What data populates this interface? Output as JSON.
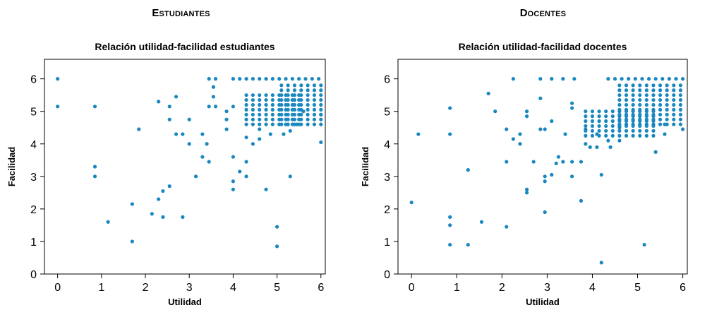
{
  "sections": [
    {
      "title_initial": "E",
      "title_rest": "studiantes"
    },
    {
      "title_initial": "D",
      "title_rest": "ocentes"
    }
  ],
  "chart_data": [
    {
      "type": "scatter",
      "title": "Relación utilidad-facilidad estudiantes",
      "xlabel": "Utilidad",
      "ylabel": "Facilidad",
      "xlim": [
        -0.3,
        6.1
      ],
      "ylim": [
        0,
        6.6
      ],
      "xticks": [
        0,
        1,
        2,
        3,
        4,
        5,
        6
      ],
      "yticks": [
        0,
        1,
        2,
        3,
        4,
        5,
        6
      ],
      "marker_color": "#1a87bf",
      "points": [
        [
          0,
          6
        ],
        [
          0,
          5.15
        ],
        [
          0.85,
          5.15
        ],
        [
          0.85,
          3.3
        ],
        [
          0.85,
          3.0
        ],
        [
          1.15,
          1.6
        ],
        [
          1.7,
          2.15
        ],
        [
          1.7,
          1.0
        ],
        [
          1.85,
          4.45
        ],
        [
          2.15,
          1.85
        ],
        [
          2.3,
          5.3
        ],
        [
          2.3,
          2.3
        ],
        [
          2.4,
          2.55
        ],
        [
          2.4,
          1.75
        ],
        [
          2.55,
          5.15
        ],
        [
          2.55,
          4.75
        ],
        [
          2.55,
          2.7
        ],
        [
          2.7,
          5.45
        ],
        [
          2.7,
          4.3
        ],
        [
          2.85,
          4.3
        ],
        [
          2.85,
          1.75
        ],
        [
          3.0,
          4.75
        ],
        [
          3.0,
          4.0
        ],
        [
          3.15,
          3.0
        ],
        [
          3.3,
          4.3
        ],
        [
          3.3,
          3.6
        ],
        [
          3.45,
          3.45
        ],
        [
          3.4,
          4.0
        ],
        [
          3.45,
          6
        ],
        [
          3.45,
          5.15
        ],
        [
          3.55,
          5.75
        ],
        [
          3.55,
          5.45
        ],
        [
          3.6,
          6
        ],
        [
          3.6,
          5.15
        ],
        [
          3.85,
          4.75
        ],
        [
          3.85,
          4.45
        ],
        [
          3.85,
          5.0
        ],
        [
          4.0,
          5.15
        ],
        [
          4.0,
          3.6
        ],
        [
          4.0,
          2.85
        ],
        [
          4.0,
          2.6
        ],
        [
          4.15,
          3.15
        ],
        [
          4.3,
          3.45
        ],
        [
          4.3,
          3.0
        ],
        [
          4.3,
          4.2
        ],
        [
          4.45,
          4.0
        ],
        [
          4.6,
          4.15
        ],
        [
          4.6,
          4.45
        ],
        [
          4.75,
          2.6
        ],
        [
          4.85,
          4.3
        ],
        [
          5.0,
          1.45
        ],
        [
          5.0,
          0.85
        ],
        [
          5.15,
          4.3
        ],
        [
          5.3,
          3.0
        ],
        [
          5.3,
          4.4
        ],
        [
          5.45,
          4.6
        ],
        [
          5.6,
          5.0
        ],
        [
          6.0,
          4.05
        ],
        [
          6.0,
          4.9
        ]
      ],
      "dense_clusters": [
        {
          "x_min": 4.0,
          "x_max": 6.0,
          "x_step": 0.15,
          "y": 6.0
        },
        {
          "x_min": 4.3,
          "x_max": 5.5,
          "x_step": 0.15,
          "y_min": 4.6,
          "y_max": 5.6,
          "y_step": 0.15
        },
        {
          "x_min": 5.1,
          "x_max": 6.0,
          "x_step": 0.15,
          "y_min": 4.6,
          "y_max": 5.9,
          "y_step": 0.15
        }
      ]
    },
    {
      "type": "scatter",
      "title": "Relación utilidad-facilidad docentes",
      "xlabel": "Utilidad",
      "ylabel": "Facilidad",
      "xlim": [
        -0.3,
        6.1
      ],
      "ylim": [
        0,
        6.6
      ],
      "xticks": [
        0,
        1,
        2,
        3,
        4,
        5,
        6
      ],
      "yticks": [
        0,
        1,
        2,
        3,
        4,
        5,
        6
      ],
      "marker_color": "#1a87bf",
      "points": [
        [
          0,
          2.2
        ],
        [
          0.15,
          4.3
        ],
        [
          0.85,
          5.1
        ],
        [
          0.85,
          4.3
        ],
        [
          0.85,
          1.75
        ],
        [
          0.85,
          1.5
        ],
        [
          0.85,
          0.9
        ],
        [
          1.25,
          3.2
        ],
        [
          1.25,
          0.9
        ],
        [
          1.55,
          1.6
        ],
        [
          1.7,
          5.55
        ],
        [
          1.85,
          5.0
        ],
        [
          2.1,
          4.45
        ],
        [
          2.1,
          3.45
        ],
        [
          2.1,
          1.45
        ],
        [
          2.25,
          6
        ],
        [
          2.25,
          4.15
        ],
        [
          2.4,
          4.0
        ],
        [
          2.4,
          4.3
        ],
        [
          2.55,
          5.0
        ],
        [
          2.55,
          4.85
        ],
        [
          2.55,
          2.6
        ],
        [
          2.55,
          2.5
        ],
        [
          2.7,
          3.45
        ],
        [
          2.85,
          5.4
        ],
        [
          2.85,
          4.45
        ],
        [
          2.85,
          6
        ],
        [
          2.95,
          4.45
        ],
        [
          2.95,
          3.0
        ],
        [
          2.95,
          2.85
        ],
        [
          2.95,
          1.9
        ],
        [
          3.1,
          6
        ],
        [
          3.1,
          4.7
        ],
        [
          3.1,
          3.05
        ],
        [
          3.2,
          3.4
        ],
        [
          3.25,
          3.6
        ],
        [
          3.35,
          6
        ],
        [
          3.35,
          3.45
        ],
        [
          3.4,
          4.3
        ],
        [
          3.55,
          3.45
        ],
        [
          3.55,
          3.0
        ],
        [
          3.55,
          5.25
        ],
        [
          3.55,
          5.1
        ],
        [
          3.6,
          6
        ],
        [
          3.75,
          3.45
        ],
        [
          3.75,
          2.25
        ],
        [
          3.85,
          4.45
        ],
        [
          3.85,
          4.0
        ],
        [
          3.95,
          3.9
        ],
        [
          4.1,
          3.9
        ],
        [
          4.1,
          4.3
        ],
        [
          4.2,
          3.05
        ],
        [
          4.2,
          0.35
        ],
        [
          4.35,
          4.1
        ],
        [
          4.4,
          3.9
        ],
        [
          4.6,
          4.1
        ],
        [
          4.6,
          4.5
        ],
        [
          5.15,
          0.9
        ],
        [
          5.4,
          3.75
        ],
        [
          5.6,
          4.3
        ],
        [
          5.6,
          4.6
        ],
        [
          6.0,
          4.45
        ]
      ],
      "dense_clusters": [
        {
          "x_min": 4.35,
          "x_max": 6.0,
          "x_step": 0.15,
          "y": 6.0
        },
        {
          "x_min": 3.85,
          "x_max": 5.4,
          "x_step": 0.15,
          "y_min": 4.25,
          "y_max": 5.1,
          "y_step": 0.15
        },
        {
          "x_min": 4.6,
          "x_max": 6.0,
          "x_step": 0.15,
          "y_min": 4.6,
          "y_max": 5.9,
          "y_step": 0.15
        }
      ]
    }
  ]
}
